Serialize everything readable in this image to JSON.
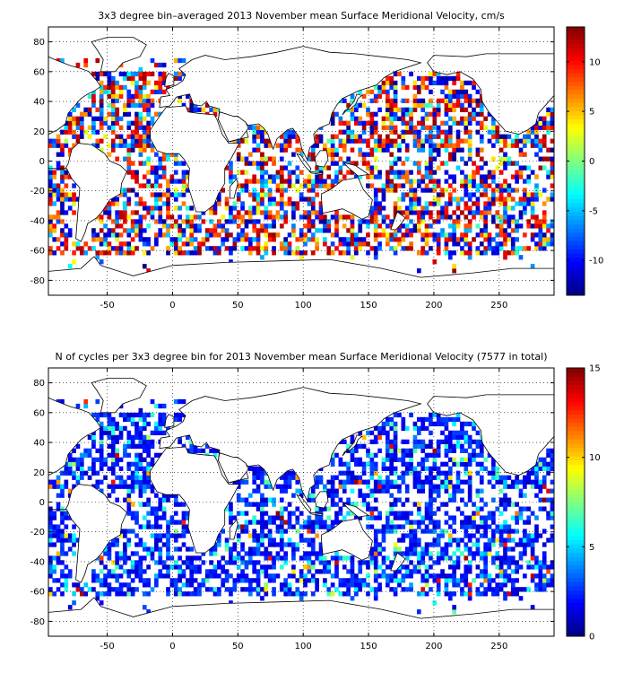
{
  "chart_data": [
    {
      "type": "heatmap",
      "title": "3x3 degree bin–averaged 2013 November mean Surface Meridional Velocity, cm/s",
      "x_range": [
        -95,
        292
      ],
      "y_range": [
        -90,
        90
      ],
      "x_ticks": [
        -50,
        0,
        50,
        100,
        150,
        200,
        250
      ],
      "y_ticks": [
        -80,
        -60,
        -40,
        -20,
        0,
        20,
        40,
        60,
        80
      ],
      "grid": true,
      "colorbar": {
        "range": [
          -13.5,
          13.5
        ],
        "ticks": [
          -10,
          -5,
          0,
          5,
          10
        ]
      },
      "bin_size_deg": 3
    },
    {
      "type": "heatmap",
      "title": "N of cycles per 3x3 degree bin for 2013 November mean Surface Meridional Velocity (7577 in total)",
      "x_range": [
        -95,
        292
      ],
      "y_range": [
        -90,
        90
      ],
      "x_ticks": [
        -50,
        0,
        50,
        100,
        150,
        200,
        250
      ],
      "y_ticks": [
        -80,
        -60,
        -40,
        -20,
        0,
        20,
        40,
        60,
        80
      ],
      "grid": true,
      "colorbar": {
        "range": [
          0,
          15
        ],
        "ticks": [
          0,
          5,
          10,
          15
        ]
      },
      "bin_size_deg": 3
    }
  ]
}
